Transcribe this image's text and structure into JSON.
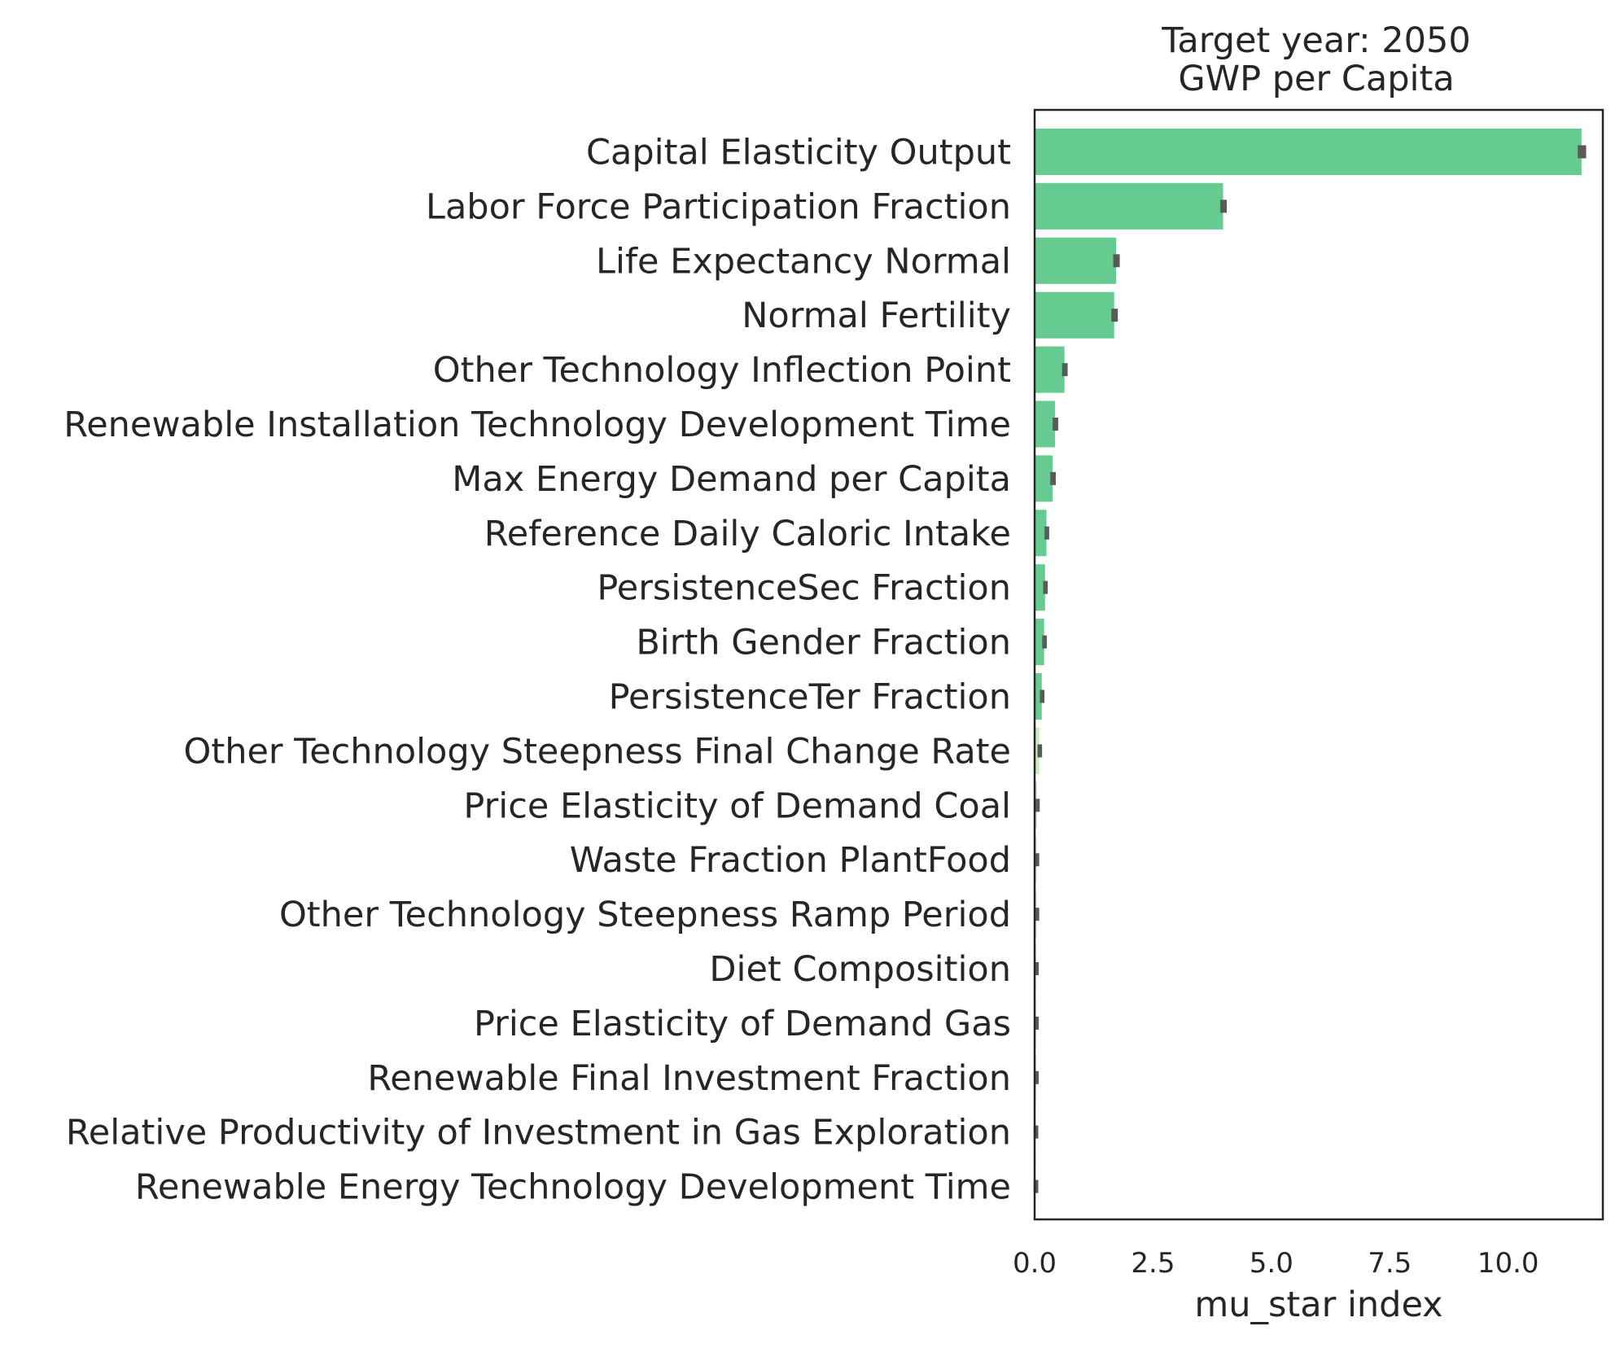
{
  "chart_data": {
    "type": "bar",
    "orientation": "horizontal",
    "title_lines": [
      "Target year: 2050",
      "GWP per Capita"
    ],
    "xlabel": "mu_star index",
    "ylabel": "",
    "xlim": [
      0,
      12.0
    ],
    "xticks": [
      0.0,
      2.5,
      5.0,
      7.5,
      10.0
    ],
    "xtick_labels": [
      "0.0",
      "2.5",
      "5.0",
      "7.5",
      "10.0"
    ],
    "grid": false,
    "legend": "none",
    "colors": {
      "bar": "#66cb91",
      "bar_light": "#c9ecc0",
      "error": "#5a5a5a",
      "frame": "#262626"
    },
    "categories": [
      "Capital Elasticity Output",
      "Labor Force Participation Fraction",
      "Life Expectancy Normal",
      "Normal Fertility",
      "Other Technology Inflection Point",
      "Renewable Installation Technology Development Time",
      "Max Energy Demand per Capita",
      "Reference Daily Caloric Intake",
      "PersistenceSec Fraction",
      "Birth Gender Fraction",
      "PersistenceTer Fraction",
      "Other Technology Steepness Final Change Rate",
      "Price Elasticity of Demand Coal",
      "Waste Fraction PlantFood",
      "Other Technology Steepness Ramp Period",
      "Diet Composition",
      "Price Elasticity of Demand Gas",
      "Renewable Final Investment Fraction",
      "Relative Productivity of Investment in Gas Exploration",
      "Renewable Energy Technology Development Time"
    ],
    "values": [
      11.55,
      3.98,
      1.72,
      1.68,
      0.63,
      0.43,
      0.38,
      0.25,
      0.22,
      0.2,
      0.15,
      0.1,
      0.05,
      0.04,
      0.04,
      0.03,
      0.03,
      0.03,
      0.02,
      0.02
    ],
    "errors": [
      0.08,
      0.06,
      0.06,
      0.06,
      0.05,
      0.05,
      0.05,
      0.04,
      0.04,
      0.04,
      0.04,
      0.04,
      0.04,
      0.04,
      0.04,
      0.04,
      0.04,
      0.04,
      0.04,
      0.04
    ],
    "bar_color_keys": [
      "bar",
      "bar",
      "bar",
      "bar",
      "bar",
      "bar",
      "bar",
      "bar",
      "bar",
      "bar",
      "bar",
      "bar_light",
      "bar_light",
      "bar_light",
      "bar_light",
      "bar_light",
      "bar_light",
      "bar_light",
      "bar_light",
      "bar_light"
    ]
  }
}
